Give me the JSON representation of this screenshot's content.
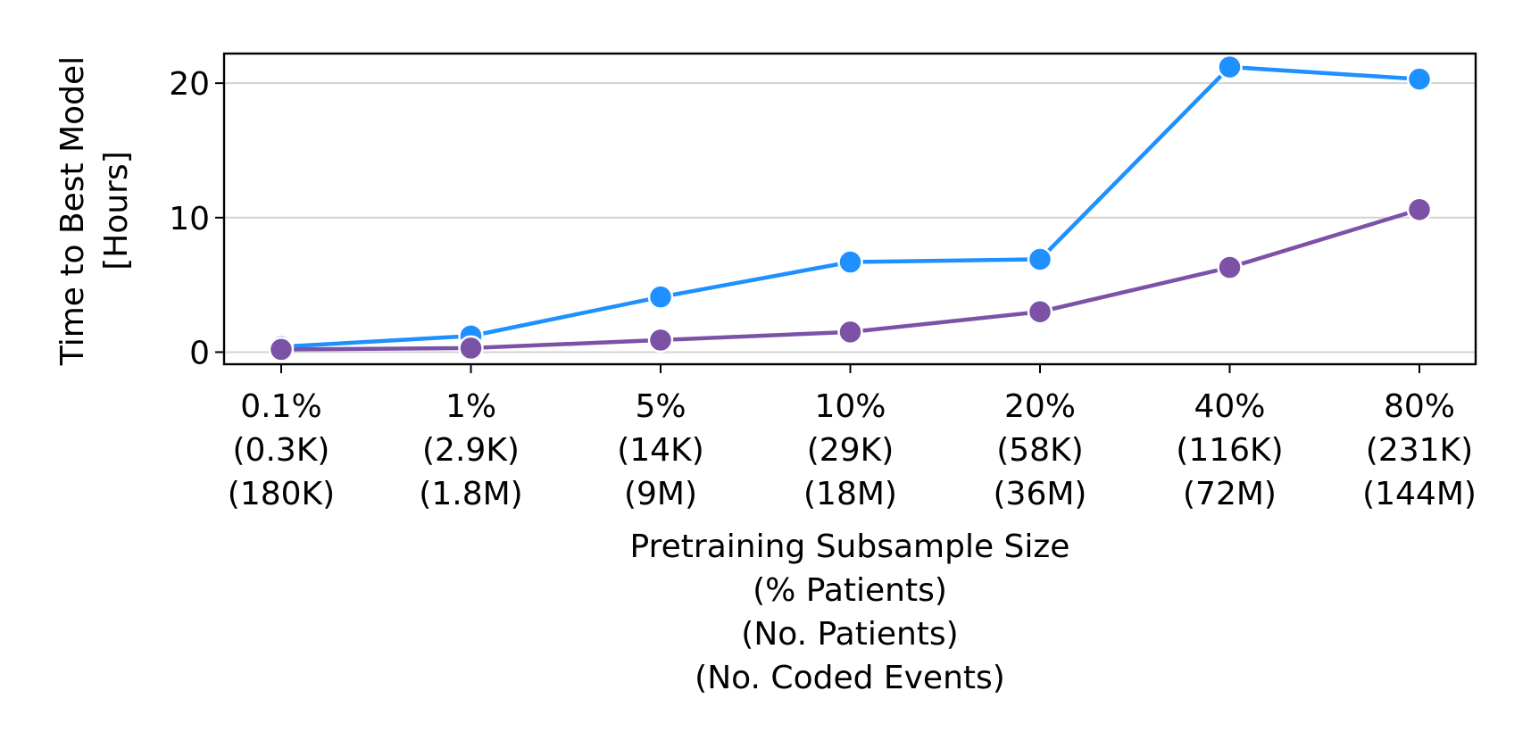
{
  "chart_data": {
    "type": "line",
    "title": "",
    "xlabel_lines": [
      "Pretraining Subsample Size",
      "(% Patients)",
      "(No. Patients)",
      "(No. Coded Events)"
    ],
    "ylabel_lines": [
      "Time to Best Model",
      "[Hours]"
    ],
    "categories": [
      [
        "0.1%",
        "(0.3K)",
        "(180K)"
      ],
      [
        "1%",
        "(2.9K)",
        "(1.8M)"
      ],
      [
        "5%",
        "(14K)",
        "(9M)"
      ],
      [
        "10%",
        "(29K)",
        "(18M)"
      ],
      [
        "20%",
        "(58K)",
        "(36M)"
      ],
      [
        "40%",
        "(116K)",
        "(72M)"
      ],
      [
        "80%",
        "(231K)",
        "(144M)"
      ]
    ],
    "yticks": [
      0,
      10,
      20
    ],
    "ylim": [
      -0.9,
      22.2
    ],
    "grid": "horizontal",
    "legend": "none",
    "series": [
      {
        "color": "#1E90FF",
        "values": [
          0.4,
          1.2,
          4.1,
          6.7,
          6.9,
          21.2,
          20.3
        ]
      },
      {
        "color": "#7B52A6",
        "values": [
          0.2,
          0.3,
          0.9,
          1.5,
          3.0,
          6.3,
          10.6
        ]
      }
    ]
  }
}
